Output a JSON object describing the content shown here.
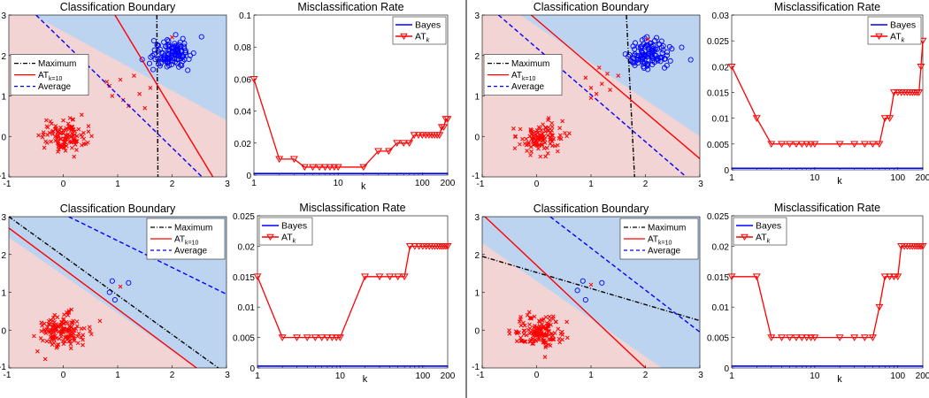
{
  "colors": {
    "region_blue": "#bcd4f0",
    "region_pink": "#f2d4d4",
    "red": "#ff0000",
    "blue": "#0000ff",
    "black": "#000000",
    "divider": "#000000"
  },
  "chart_data": [
    {
      "type": "scatter",
      "title": "Classification Boundary",
      "xlim": [
        -1,
        3
      ],
      "ylim": [
        -1,
        3
      ],
      "xticks": [
        -1,
        0,
        1,
        2,
        3
      ],
      "yticks": [
        -1,
        0,
        1,
        2,
        3
      ],
      "legend": {
        "placement": "middle-left",
        "entries": [
          {
            "label": "Maximum",
            "sub": "",
            "style": "dashdot",
            "color": "#000000"
          },
          {
            "label": "AT",
            "sub": "k=10",
            "style": "solid",
            "color": "#ff0000"
          },
          {
            "label": "Average",
            "sub": "",
            "style": "dashed",
            "color": "#0000ff"
          }
        ]
      },
      "regions": {
        "blue_above": [
          [
            -0.55,
            3
          ],
          [
            3,
            0.4
          ]
        ]
      },
      "boundaries": [
        {
          "series": "Maximum",
          "points": [
            [
              1.72,
              3
            ],
            [
              1.74,
              -1
            ]
          ]
        },
        {
          "series": "AT_k=10",
          "points": [
            [
              0.95,
              3
            ],
            [
              2.75,
              -1
            ]
          ]
        },
        {
          "series": "Average",
          "points": [
            [
              -0.5,
              3
            ],
            [
              2.55,
              -1
            ]
          ]
        }
      ],
      "clusters": {
        "red": {
          "center": [
            0,
            0
          ],
          "spread": [
            0.2,
            0.2
          ],
          "count": 120
        },
        "blue": {
          "center": [
            2,
            2.05
          ],
          "spread": [
            0.2,
            0.17
          ],
          "count": 120
        },
        "red_outliers": [
          [
            0.8,
            1.35
          ],
          [
            0.9,
            1.0
          ],
          [
            1.1,
            0.9
          ],
          [
            1.3,
            1.5
          ],
          [
            1.5,
            0.7
          ],
          [
            1.2,
            0.75
          ],
          [
            1.6,
            1.2
          ],
          [
            0.85,
            1.25
          ],
          [
            1.4,
            1.05
          ],
          [
            1.05,
            1.4
          ],
          [
            2.0,
            2.45
          ]
        ]
      }
    },
    {
      "type": "line",
      "title": "Misclassification Rate",
      "xlabel": "k",
      "xscale": "log",
      "xlim": [
        1,
        200
      ],
      "ylim": [
        0,
        0.1
      ],
      "xticks": [
        1,
        10,
        100,
        200
      ],
      "yticks": [
        0,
        0.02,
        0.04,
        0.06,
        0.08,
        0.1
      ],
      "legend": {
        "placement": "top-right",
        "entries": [
          {
            "label": "Bayes",
            "sub": ""
          },
          {
            "label": "AT",
            "sub": "k"
          }
        ]
      },
      "series": [
        {
          "name": "Bayes",
          "x": [
            1,
            200
          ],
          "values": [
            0.001,
            0.001
          ]
        },
        {
          "name": "AT_k",
          "x": [
            1,
            2,
            3,
            4,
            5,
            6,
            7,
            8,
            9,
            10,
            20,
            30,
            40,
            50,
            60,
            70,
            80,
            90,
            100,
            110,
            120,
            130,
            140,
            150,
            160,
            170,
            180,
            190,
            200
          ],
          "values": [
            0.06,
            0.01,
            0.01,
            0.005,
            0.005,
            0.005,
            0.005,
            0.005,
            0.005,
            0.005,
            0.005,
            0.015,
            0.015,
            0.02,
            0.02,
            0.02,
            0.025,
            0.025,
            0.025,
            0.025,
            0.025,
            0.025,
            0.025,
            0.025,
            0.025,
            0.03,
            0.03,
            0.035,
            0.035
          ]
        }
      ]
    },
    {
      "type": "scatter",
      "title": "Classification Boundary",
      "xlim": [
        -1,
        3
      ],
      "ylim": [
        -1,
        3
      ],
      "xticks": [
        -1,
        0,
        1,
        2,
        3
      ],
      "yticks": [
        -1,
        0,
        1,
        2,
        3
      ],
      "legend": {
        "placement": "top-right",
        "entries": [
          {
            "label": "Maximum",
            "sub": "",
            "style": "dashdot",
            "color": "#000000"
          },
          {
            "label": "AT",
            "sub": "k=10",
            "style": "solid",
            "color": "#ff0000"
          },
          {
            "label": "Average",
            "sub": "",
            "style": "dashed",
            "color": "#0000ff"
          }
        ]
      },
      "regions": {
        "blue_above": [
          [
            -1,
            2.45
          ],
          [
            3,
            -1.55
          ]
        ]
      },
      "boundaries": [
        {
          "series": "Maximum",
          "points": [
            [
              -1,
              3
            ],
            [
              2.85,
              -1
            ]
          ]
        },
        {
          "series": "AT_k=10",
          "points": [
            [
              -1,
              2.7
            ],
            [
              2.45,
              -1
            ]
          ]
        },
        {
          "series": "Average",
          "points": [
            [
              0.1,
              3
            ],
            [
              3,
              0.95
            ]
          ]
        }
      ],
      "clusters": {
        "red": {
          "center": [
            0,
            0
          ],
          "spread": [
            0.22,
            0.22
          ],
          "count": 150
        },
        "blue_points": [
          [
            0.9,
            1.3
          ],
          [
            0.85,
            1.0
          ],
          [
            0.95,
            0.8
          ],
          [
            1.2,
            1.25
          ]
        ],
        "red_outliers": [
          [
            1.05,
            1.15
          ]
        ]
      }
    },
    {
      "type": "line",
      "title": "Misclassification Rate",
      "xlabel": "k",
      "xscale": "log",
      "xlim": [
        1,
        200
      ],
      "ylim": [
        0,
        0.025
      ],
      "xticks": [
        1,
        10,
        100,
        200
      ],
      "yticks": [
        0,
        0.005,
        0.01,
        0.015,
        0.02,
        0.025
      ],
      "legend": {
        "placement": "top-left",
        "entries": [
          {
            "label": "Bayes",
            "sub": ""
          },
          {
            "label": "AT",
            "sub": "k"
          }
        ]
      },
      "series": [
        {
          "name": "Bayes",
          "x": [
            1,
            200
          ],
          "values": [
            0.0003,
            0.0003
          ]
        },
        {
          "name": "AT_k",
          "x": [
            1,
            2,
            3,
            4,
            5,
            6,
            7,
            8,
            9,
            10,
            20,
            30,
            40,
            50,
            60,
            70,
            80,
            90,
            100,
            110,
            120,
            130,
            140,
            150,
            160,
            170,
            180,
            190,
            200
          ],
          "values": [
            0.015,
            0.005,
            0.005,
            0.005,
            0.005,
            0.005,
            0.005,
            0.005,
            0.005,
            0.005,
            0.015,
            0.015,
            0.015,
            0.015,
            0.015,
            0.02,
            0.02,
            0.02,
            0.02,
            0.02,
            0.02,
            0.02,
            0.02,
            0.02,
            0.02,
            0.02,
            0.02,
            0.02,
            0.02
          ]
        }
      ]
    },
    {
      "type": "scatter",
      "title": "Classification Boundary",
      "xlim": [
        -1,
        3
      ],
      "ylim": [
        -1,
        3
      ],
      "xticks": [
        -1,
        0,
        1,
        2,
        3
      ],
      "yticks": [
        -1,
        0,
        1,
        2,
        3
      ],
      "legend": {
        "placement": "middle-left",
        "entries": [
          {
            "label": "Maximum",
            "sub": "",
            "style": "dashdot",
            "color": "#000000"
          },
          {
            "label": "AT",
            "sub": "k=10",
            "style": "solid",
            "color": "#ff0000"
          },
          {
            "label": "Average",
            "sub": "",
            "style": "dashed",
            "color": "#0000ff"
          }
        ]
      },
      "regions": {
        "blue_above": [
          [
            -0.3,
            3
          ],
          [
            3,
            0.0
          ]
        ]
      },
      "boundaries": [
        {
          "series": "Maximum",
          "points": [
            [
              1.65,
              3
            ],
            [
              1.8,
              -1
            ]
          ]
        },
        {
          "series": "AT_k=10",
          "points": [
            [
              -0.1,
              3
            ],
            [
              3,
              -0.55
            ]
          ]
        },
        {
          "series": "Average",
          "points": [
            [
              -0.7,
              3
            ],
            [
              2.75,
              -1
            ]
          ]
        }
      ],
      "clusters": {
        "red": {
          "center": [
            0.05,
            -0.05
          ],
          "spread": [
            0.2,
            0.2
          ],
          "count": 110
        },
        "blue": {
          "center": [
            2.05,
            2.0
          ],
          "spread": [
            0.2,
            0.2
          ],
          "count": 110
        },
        "red_outliers": [
          [
            0.9,
            1.45
          ],
          [
            1.0,
            1.2
          ],
          [
            1.1,
            1.05
          ],
          [
            1.2,
            1.3
          ],
          [
            1.3,
            1.55
          ],
          [
            1.15,
            1.7
          ],
          [
            1.35,
            1.15
          ],
          [
            1.0,
            0.95
          ],
          [
            1.5,
            1.5
          ],
          [
            2.05,
            2.4
          ]
        ]
      }
    },
    {
      "type": "line",
      "title": "Misclassification Rate",
      "xlabel": "k",
      "xscale": "log",
      "xlim": [
        1,
        200
      ],
      "ylim": [
        0,
        0.03
      ],
      "xticks": [
        1,
        10,
        100,
        200
      ],
      "yticks": [
        0,
        0.005,
        0.01,
        0.015,
        0.02,
        0.025,
        0.03
      ],
      "legend": {
        "placement": "top-right",
        "entries": [
          {
            "label": "Bayes",
            "sub": ""
          },
          {
            "label": "AT",
            "sub": "k"
          }
        ]
      },
      "series": [
        {
          "name": "Bayes",
          "x": [
            1,
            200
          ],
          "values": [
            0.0003,
            0.0003
          ]
        },
        {
          "name": "AT_k",
          "x": [
            1,
            2,
            3,
            4,
            5,
            6,
            7,
            8,
            9,
            10,
            20,
            30,
            40,
            50,
            60,
            70,
            80,
            90,
            100,
            110,
            120,
            130,
            140,
            150,
            160,
            170,
            180,
            190,
            200
          ],
          "values": [
            0.02,
            0.01,
            0.005,
            0.005,
            0.005,
            0.005,
            0.005,
            0.005,
            0.005,
            0.005,
            0.005,
            0.005,
            0.005,
            0.005,
            0.005,
            0.01,
            0.01,
            0.015,
            0.015,
            0.015,
            0.015,
            0.015,
            0.015,
            0.015,
            0.015,
            0.015,
            0.015,
            0.02,
            0.025
          ]
        }
      ]
    },
    {
      "type": "scatter",
      "title": "Classification Boundary",
      "xlim": [
        -1,
        3
      ],
      "ylim": [
        -1,
        3
      ],
      "xticks": [
        -1,
        0,
        1,
        2,
        3
      ],
      "yticks": [
        -1,
        0,
        1,
        2,
        3
      ],
      "legend": {
        "placement": "top-right",
        "entries": [
          {
            "label": "Maximum",
            "sub": "",
            "style": "dashdot",
            "color": "#000000"
          },
          {
            "label": "AT",
            "sub": "k=10",
            "style": "solid",
            "color": "#ff0000"
          },
          {
            "label": "Average",
            "sub": "",
            "style": "dashed",
            "color": "#0000ff"
          }
        ]
      },
      "regions": {
        "blue_above": [
          [
            -1,
            2.3
          ],
          [
            3,
            -1.7
          ]
        ]
      },
      "boundaries": [
        {
          "series": "Maximum",
          "points": [
            [
              -1,
              1.95
            ],
            [
              3,
              0.25
            ]
          ]
        },
        {
          "series": "AT_k=10",
          "points": [
            [
              -0.95,
              3
            ],
            [
              2.0,
              -1
            ]
          ]
        },
        {
          "series": "Average",
          "points": [
            [
              0.25,
              3
            ],
            [
              3,
              -0.05
            ]
          ]
        }
      ],
      "clusters": {
        "red": {
          "center": [
            0.05,
            -0.05
          ],
          "spread": [
            0.22,
            0.22
          ],
          "count": 150
        },
        "blue_points": [
          [
            0.85,
            1.3
          ],
          [
            0.75,
            1.05
          ],
          [
            0.9,
            0.8
          ],
          [
            1.2,
            1.25
          ]
        ],
        "red_outliers": [
          [
            1.0,
            1.2
          ]
        ]
      }
    },
    {
      "type": "line",
      "title": "Misclassification Rate",
      "xlabel": "k",
      "xscale": "log",
      "xlim": [
        1,
        200
      ],
      "ylim": [
        0,
        0.025
      ],
      "xticks": [
        1,
        10,
        100,
        200
      ],
      "yticks": [
        0,
        0.005,
        0.01,
        0.015,
        0.02,
        0.025
      ],
      "legend": {
        "placement": "top-left",
        "entries": [
          {
            "label": "Bayes",
            "sub": ""
          },
          {
            "label": "AT",
            "sub": "k"
          }
        ]
      },
      "series": [
        {
          "name": "Bayes",
          "x": [
            1,
            200
          ],
          "values": [
            0.0003,
            0.0003
          ]
        },
        {
          "name": "AT_k",
          "x": [
            1,
            2,
            3,
            4,
            5,
            6,
            7,
            8,
            9,
            10,
            20,
            30,
            40,
            50,
            60,
            70,
            80,
            90,
            100,
            110,
            120,
            130,
            140,
            150,
            160,
            170,
            180,
            190,
            200
          ],
          "values": [
            0.015,
            0.015,
            0.005,
            0.005,
            0.005,
            0.005,
            0.005,
            0.005,
            0.005,
            0.005,
            0.005,
            0.005,
            0.005,
            0.005,
            0.01,
            0.015,
            0.015,
            0.015,
            0.015,
            0.02,
            0.02,
            0.02,
            0.02,
            0.02,
            0.02,
            0.02,
            0.02,
            0.02,
            0.02
          ]
        }
      ]
    }
  ]
}
